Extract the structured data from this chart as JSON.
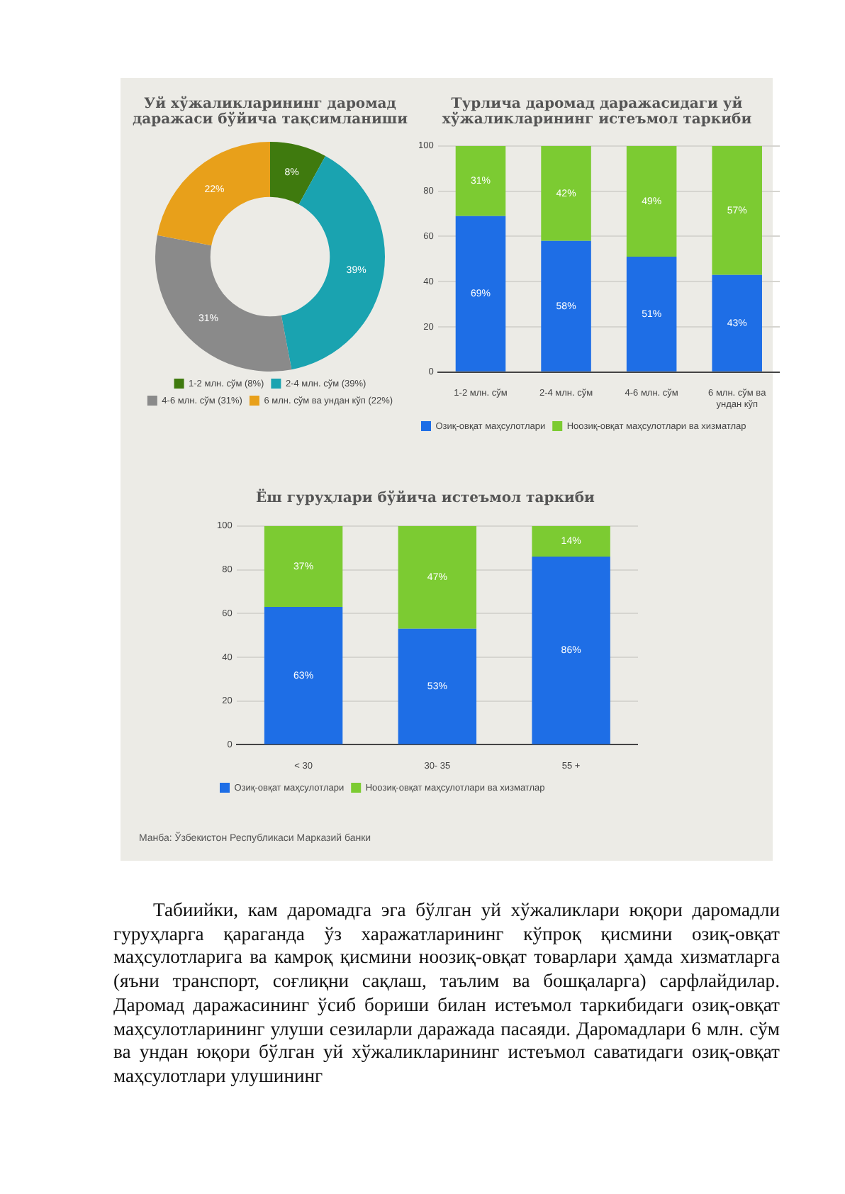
{
  "chart_data": [
    {
      "type": "donut",
      "title": "Уй хўжаликларининг даромад даражаси бўйича тақсимланиши",
      "categories": [
        "1-2 млн. сўм (8%)",
        "2-4 млн. сўм (39%)",
        "4-6 млн. сўм (31%)",
        "6 млн. сўм ва ундан кўп (22%)"
      ],
      "values": [
        8,
        39,
        31,
        22
      ],
      "colors": [
        "#3f7a0e",
        "#1aa3b0",
        "#8a8a8a",
        "#e8a01a"
      ],
      "value_labels": [
        "8%",
        "39%",
        "31%",
        "22%"
      ],
      "legend": "bottom"
    },
    {
      "type": "bar",
      "title": "Турлича даромад даражасидаги уй хўжаликларининг истеъмол таркиби",
      "categories": [
        "1-2 млн. сўм",
        "2-4 млн. сўм",
        "4-6 млн. сўм",
        "6 млн. сўм ва ундан кўп"
      ],
      "stacked": true,
      "ylim": [
        0,
        100
      ],
      "yticks": [
        0,
        20,
        40,
        60,
        80,
        100
      ],
      "grid": "y",
      "legend": "bottom",
      "series": [
        {
          "name": "Озиқ-овқат маҳсулотлари",
          "color": "#1e6ee6",
          "values": [
            69,
            58,
            51,
            43
          ],
          "value_labels": [
            "69%",
            "58%",
            "51%",
            "43%"
          ]
        },
        {
          "name": "Ноозиқ-овқат маҳсулотлари ва хизматлар",
          "color": "#7ccb32",
          "values": [
            31,
            42,
            49,
            57
          ],
          "value_labels": [
            "31%",
            "42%",
            "49%",
            "57%"
          ]
        }
      ]
    },
    {
      "type": "bar",
      "title": "Ёш гуруҳлари бўйича истеъмол таркиби",
      "categories": [
        "< 30",
        "30- 35",
        "55 +"
      ],
      "stacked": true,
      "ylim": [
        0,
        100
      ],
      "yticks": [
        0,
        20,
        40,
        60,
        80,
        100
      ],
      "grid": "y",
      "legend": "bottom",
      "series": [
        {
          "name": "Озиқ-овқат маҳсулотлари",
          "color": "#1e6ee6",
          "values": [
            63,
            53,
            86
          ],
          "value_labels": [
            "63%",
            "53%",
            "86%"
          ]
        },
        {
          "name": "Ноозиқ-овқат маҳсулотлари ва хизматлар",
          "color": "#7ccb32",
          "values": [
            37,
            47,
            14
          ],
          "value_labels": [
            "37%",
            "47%",
            "14%"
          ]
        }
      ],
      "annotations": [
        "Манба: Ўзбекистон Республикаси Марказий банки",
        "Табиийки, кам даромадга эга бўлган уй хўжаликлари юқори даромадли гуруҳларга қараганда ўз харажатларининг кўпроқ қисмини озиқ-овқат маҳсулотларига ва камроқ қисмини ноозиқ-овқат товарлари ҳамда хизматларга (яъни транспорт, соғлиқни сақлаш, таълим ва бошқаларга) сарфлайдилар. Даромад даражасининг ўсиб бориши билан истеъмол таркибидаги озиқ-овқат маҳсулотларининг улуши сезиларли даражада пасаяди. Даромадлари 6 млн. сўм ва ундан юқори бўлган уй хўжаликларининг истеъмол саватидаги озиқ-овқат маҳсулотлари улушининг"
      ]
    }
  ]
}
